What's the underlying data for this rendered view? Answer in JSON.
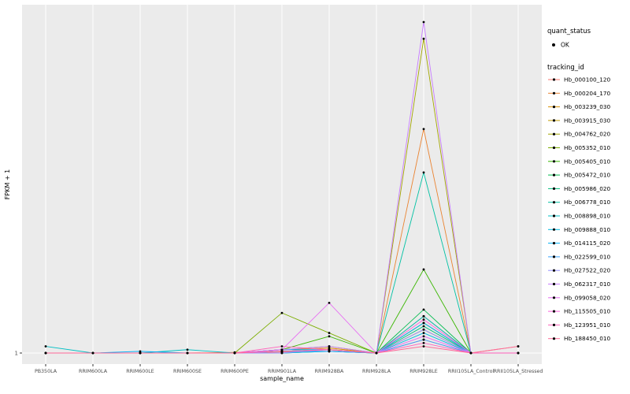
{
  "figure": {
    "bg": "#FFFFFF",
    "panel_bg": "#EBEBEB",
    "grid_color": "#FFFFFF",
    "axis_text_color": "#4D4D4D",
    "text_color": "#000000",
    "point_color": "#000000"
  },
  "axes": {
    "x_title": "sample_name",
    "y_title": "FPKM + 1",
    "y_tick_labels": [
      "1"
    ],
    "x_tick_labels": [
      "PB350LA",
      "RRIM600LA",
      "RRIM600LE",
      "RRIM600SE",
      "RRIM600PE",
      "RRIM901LA",
      "RRIM928BA",
      "RRIM928LA",
      "RRIM928LE",
      "RRII105LA_Control",
      "RRII105LA_Stressed"
    ]
  },
  "legend": {
    "quant_status_title": "quant_status",
    "quant_status_entries": [
      {
        "label": "OK",
        "marker": "black-point"
      }
    ],
    "tracking_id_title": "tracking_id"
  },
  "chart_data": {
    "type": "line",
    "title": "",
    "xlabel": "sample_name",
    "ylabel": "FPKM + 1",
    "ylim": [
      0,
      105
    ],
    "y_ticks": [
      1
    ],
    "grid": "vertical-major-white-on-gray",
    "legend_position": "right",
    "points": "black dot at every sample point (quant_status = OK)",
    "categories": [
      "PB350LA",
      "RRIM600LA",
      "RRIM600LE",
      "RRIM600SE",
      "RRIM600PE",
      "RRIM901LA",
      "RRIM928BA",
      "RRIM928LA",
      "RRIM928LE",
      "RRII105LA_Control",
      "RRII105LA_Stressed"
    ],
    "series": [
      {
        "name": "Hb_000100_120",
        "color": "#F8766D",
        "values": [
          1,
          1,
          1,
          1,
          1,
          1.3,
          1.5,
          1,
          5,
          1,
          3
        ]
      },
      {
        "name": "Hb_000204_170",
        "color": "#EA8331",
        "values": [
          1,
          1,
          1,
          1,
          1.2,
          1.5,
          2,
          1,
          68,
          1,
          1
        ]
      },
      {
        "name": "Hb_003239_030",
        "color": "#D89000",
        "values": [
          1,
          1,
          1,
          1,
          1,
          2,
          2.5,
          1,
          12,
          1,
          1
        ]
      },
      {
        "name": "Hb_003915_030",
        "color": "#C09B00",
        "values": [
          1,
          1,
          1,
          1,
          1,
          1.5,
          2,
          1,
          8,
          1,
          1
        ]
      },
      {
        "name": "Hb_004762_020",
        "color": "#A3A500",
        "values": [
          1,
          1,
          1,
          1,
          1,
          2,
          3,
          1,
          95,
          1,
          1
        ]
      },
      {
        "name": "Hb_005352_010",
        "color": "#7CAE00",
        "values": [
          1,
          1,
          1,
          1,
          1,
          13,
          7,
          1,
          10,
          1,
          1
        ]
      },
      {
        "name": "Hb_005405_010",
        "color": "#39B600",
        "values": [
          1,
          1,
          1,
          1,
          1,
          2,
          6,
          1,
          26,
          1,
          1
        ]
      },
      {
        "name": "Hb_005472_010",
        "color": "#00BB4E",
        "values": [
          1,
          1,
          1,
          1,
          1,
          1.5,
          2,
          1,
          14,
          1,
          1
        ]
      },
      {
        "name": "Hb_005986_020",
        "color": "#00BF7D",
        "values": [
          1,
          1,
          1,
          1,
          1,
          1,
          1.5,
          1,
          9,
          1,
          1
        ]
      },
      {
        "name": "Hb_006778_010",
        "color": "#00C1A3",
        "values": [
          1,
          1,
          1,
          1,
          1,
          1.5,
          2,
          1,
          55,
          1,
          1
        ]
      },
      {
        "name": "Hb_008898_010",
        "color": "#00BFC4",
        "values": [
          3,
          1,
          1,
          2,
          1,
          1.5,
          2,
          1,
          12,
          1,
          1
        ]
      },
      {
        "name": "Hb_009888_010",
        "color": "#00BAE0",
        "values": [
          1,
          1,
          1,
          1,
          1,
          1,
          1.5,
          1,
          7,
          1,
          1
        ]
      },
      {
        "name": "Hb_014115_020",
        "color": "#00B0F6",
        "values": [
          1,
          1,
          1.5,
          1,
          1,
          2,
          2,
          1,
          10,
          1,
          1
        ]
      },
      {
        "name": "Hb_022599_010",
        "color": "#35A2FF",
        "values": [
          1,
          1,
          1,
          1,
          1,
          1.5,
          1.5,
          1,
          5,
          1,
          1
        ]
      },
      {
        "name": "Hb_027522_020",
        "color": "#9590FF",
        "values": [
          1,
          1,
          1,
          1,
          1,
          1,
          2,
          1,
          8,
          1,
          1
        ]
      },
      {
        "name": "Hb_062317_010",
        "color": "#C77CFF",
        "values": [
          1,
          1,
          1,
          1,
          1,
          2,
          3,
          1,
          100,
          1,
          1
        ]
      },
      {
        "name": "Hb_099058_020",
        "color": "#E76BF3",
        "values": [
          1,
          1,
          1,
          1,
          1,
          2,
          16,
          1,
          6,
          1,
          1
        ]
      },
      {
        "name": "Hb_115505_010",
        "color": "#FA62DB",
        "values": [
          1,
          1,
          1,
          1,
          1,
          1.5,
          2,
          1,
          11,
          1,
          1
        ]
      },
      {
        "name": "Hb_123951_010",
        "color": "#FF62BC",
        "values": [
          1,
          1,
          1,
          1,
          1,
          3,
          2,
          1,
          4,
          1,
          1
        ]
      },
      {
        "name": "Hb_188450_010",
        "color": "#FF6A98",
        "values": [
          1,
          1,
          1,
          1,
          1,
          1.5,
          2,
          1,
          3,
          1,
          3
        ]
      }
    ]
  }
}
